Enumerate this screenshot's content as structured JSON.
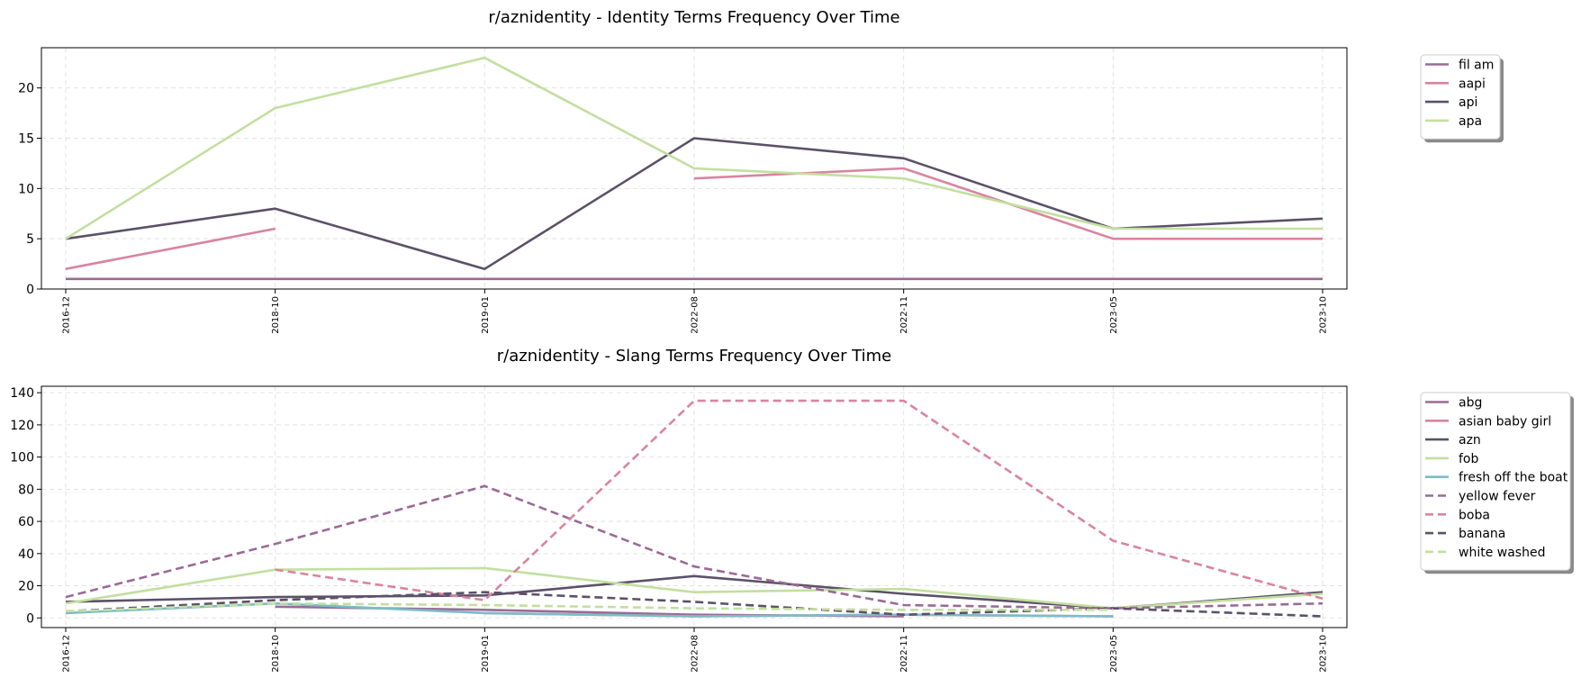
{
  "chart_data": [
    {
      "type": "line",
      "title": "r/aznidentity - Identity Terms Frequency Over Time",
      "x": [
        "2016-12",
        "2018-10",
        "2019-01",
        "2022-08",
        "2022-11",
        "2023-05",
        "2023-10"
      ],
      "ylim": [
        0,
        24
      ],
      "yticks": [
        0,
        5,
        10,
        15,
        20
      ],
      "grid": true,
      "legend": "outside-top-right",
      "series": [
        {
          "name": "fil am",
          "color": "#9a6a96",
          "dash": false,
          "values": [
            1,
            1,
            1,
            1,
            1,
            1,
            1
          ]
        },
        {
          "name": "aapi",
          "color": "#d9849f",
          "dash": false,
          "values": [
            2,
            6,
            null,
            11,
            12,
            5,
            5
          ]
        },
        {
          "name": "api",
          "color": "#5c5168",
          "dash": false,
          "values": [
            5,
            8,
            2,
            15,
            13,
            6,
            7
          ]
        },
        {
          "name": "apa",
          "color": "#c2df9f",
          "dash": false,
          "values": [
            5,
            18,
            23,
            12,
            11,
            6,
            6
          ]
        }
      ]
    },
    {
      "type": "line",
      "title": "r/aznidentity - Slang Terms Frequency Over Time",
      "x": [
        "2016-12",
        "2018-10",
        "2019-01",
        "2022-08",
        "2022-11",
        "2023-05",
        "2023-10"
      ],
      "ylim": [
        -6,
        144
      ],
      "yticks": [
        0,
        20,
        40,
        60,
        80,
        100,
        120,
        140
      ],
      "grid": true,
      "legend": "outside-top-right",
      "series": [
        {
          "name": "abg",
          "color": "#9a6a96",
          "dash": false,
          "values": [
            null,
            7,
            5,
            2,
            1,
            null,
            null
          ]
        },
        {
          "name": "asian baby girl",
          "color": "#d9849f",
          "dash": false,
          "values": [
            null,
            null,
            3,
            1,
            2,
            1,
            null
          ]
        },
        {
          "name": "azn",
          "color": "#5c5168",
          "dash": false,
          "values": [
            10,
            13,
            14,
            26,
            15,
            6,
            16
          ]
        },
        {
          "name": "fob",
          "color": "#c2df9f",
          "dash": false,
          "values": [
            9,
            30,
            31,
            16,
            18,
            6,
            15
          ]
        },
        {
          "name": "fresh off the boat",
          "color": "#7bbcc8",
          "dash": false,
          "values": [
            3,
            9,
            3,
            1,
            2,
            1,
            null
          ]
        },
        {
          "name": "yellow fever",
          "color": "#9a6a96",
          "dash": true,
          "values": [
            13,
            46,
            82,
            32,
            8,
            6,
            9
          ]
        },
        {
          "name": "boba",
          "color": "#d9849f",
          "dash": true,
          "values": [
            null,
            30,
            11,
            135,
            135,
            48,
            12
          ]
        },
        {
          "name": "banana",
          "color": "#5c5168",
          "dash": true,
          "values": [
            4,
            11,
            16,
            10,
            2,
            6,
            1
          ]
        },
        {
          "name": "white washed",
          "color": "#c2df9f",
          "dash": true,
          "values": [
            4,
            9,
            8,
            6,
            5,
            5,
            null
          ]
        }
      ]
    }
  ]
}
